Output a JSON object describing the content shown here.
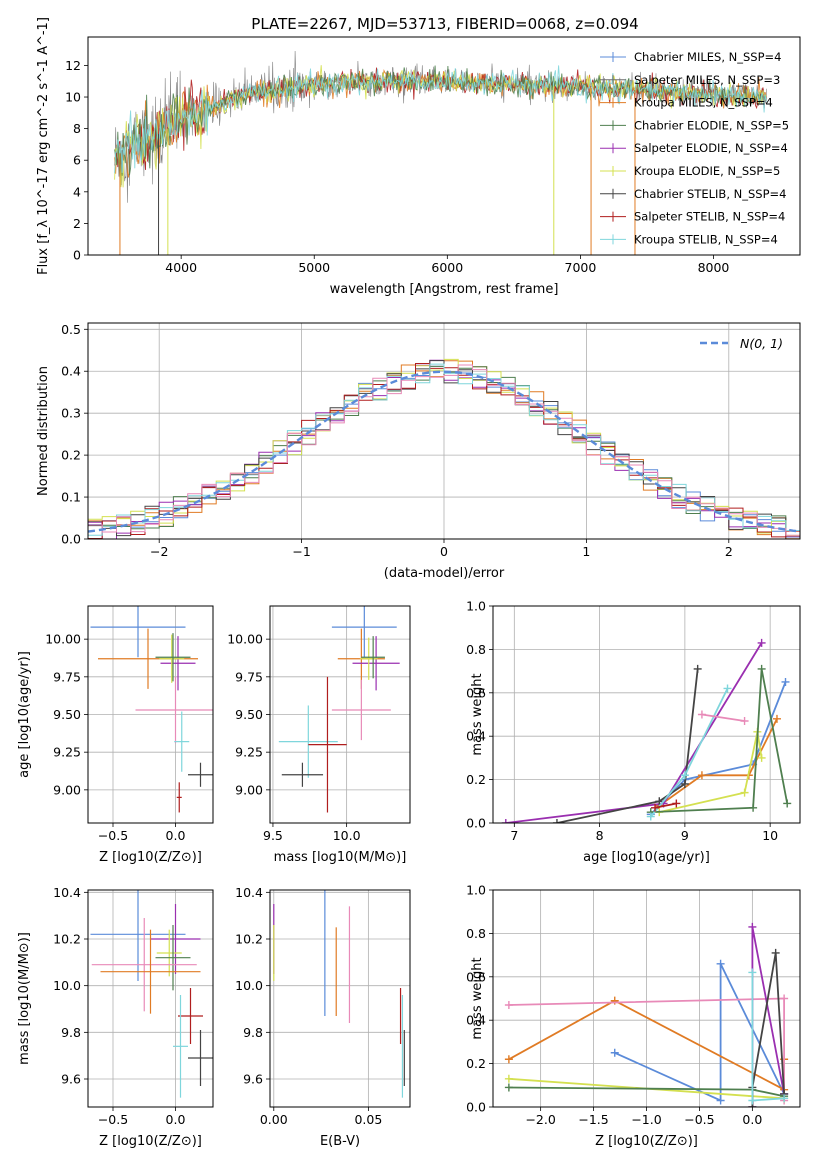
{
  "figure": {
    "title": "PLATE=2267, MJD=53713, FIBERID=0068, z=0.094"
  },
  "colors": {
    "Chabrier MILES": "#5b8bd9",
    "Salpeter MILES": "#6e6e6e",
    "Kroupa MILES": "#e07b24",
    "Chabrier ELODIE": "#4f7f4f",
    "Salpeter ELODIE": "#9a2fb0",
    "Kroupa ELODIE": "#d4e050",
    "Chabrier STELIB": "#444444",
    "Salpeter STELIB": "#b01e1e",
    "Kroupa STELIB": "#7fd6dc",
    "pink": "#e88ab8",
    "normal_curve": "#5b8bd9"
  },
  "chart_data": [
    {
      "id": "spectrum",
      "type": "line",
      "title": "PLATE=2267, MJD=53713, FIBERID=0068, z=0.094",
      "xlabel": "wavelength [Angstrom, rest frame]",
      "ylabel": "Flux [f_λ 10^-17 erg cm^-2 s^-1 A^-1]",
      "xlim": [
        3300,
        8650
      ],
      "ylim": [
        0,
        13.8
      ],
      "xticks": [
        "4000",
        "5000",
        "6000",
        "7000",
        "8000"
      ],
      "yticks": [
        "0",
        "2",
        "4",
        "6",
        "8",
        "10",
        "12"
      ],
      "grid": false,
      "legend_position": "top-right",
      "legend": [
        "Chabrier MILES, N_SSP=4",
        "Salpeter MILES, N_SSP=3",
        "Kroupa MILES, N_SSP=4",
        "Chabrier ELODIE, N_SSP=5",
        "Salpeter ELODIE, N_SSP=4",
        "Kroupa ELODIE, N_SSP=5",
        "Chabrier STELIB, N_SSP=4",
        "Salpeter STELIB, N_SSP=4",
        "Kroupa STELIB, N_SSP=4"
      ],
      "continuum_points": [
        [
          3500,
          6.2
        ],
        [
          3600,
          6.8
        ],
        [
          3700,
          7.2
        ],
        [
          3800,
          7.5
        ],
        [
          3900,
          8.0
        ],
        [
          4000,
          8.6
        ],
        [
          4200,
          9.3
        ],
        [
          4500,
          10.2
        ],
        [
          5000,
          10.8
        ],
        [
          5500,
          11.0
        ],
        [
          6000,
          11.0
        ],
        [
          6500,
          10.8
        ],
        [
          7000,
          10.6
        ],
        [
          7500,
          10.4
        ],
        [
          8000,
          10.2
        ],
        [
          8400,
          10.0
        ]
      ]
    },
    {
      "id": "residuals",
      "type": "histogram",
      "xlabel": "(data-model)/error",
      "ylabel": "Normed distribution",
      "xlim": [
        -2.5,
        2.5
      ],
      "ylim": [
        0,
        0.515
      ],
      "xticks": [
        "−2",
        "−1",
        "0",
        "1",
        "2"
      ],
      "yticks": [
        "0.0",
        "0.1",
        "0.2",
        "0.3",
        "0.4",
        "0.5"
      ],
      "grid": true,
      "legend_position": "top-right",
      "legend": [
        "N(0, 1)"
      ],
      "bin_width": 0.1
    },
    {
      "id": "age_vs_Z",
      "type": "scatter",
      "xlabel": "Z [log10(Z/Z⊙)]",
      "ylabel": "age  [log10(age/yr)]",
      "xlim": [
        -0.7,
        0.3
      ],
      "ylim": [
        8.78,
        10.22
      ],
      "xticks": [
        "−0.5",
        "0.0"
      ],
      "yticks": [
        "9.00",
        "9.25",
        "9.50",
        "9.75",
        "10.00"
      ],
      "grid": true,
      "series": [
        {
          "name": "Chabrier MILES",
          "x": -0.3,
          "xerr": 0.38,
          "y": 10.08,
          "yerr": 0.2
        },
        {
          "name": "Kroupa MILES",
          "x": -0.22,
          "xerr": 0.4,
          "y": 9.87,
          "yerr": 0.2
        },
        {
          "name": "Salpeter ELODIE",
          "x": 0.02,
          "xerr": 0.14,
          "y": 9.84,
          "yerr": 0.18
        },
        {
          "name": "Kroupa ELODIE",
          "x": -0.03,
          "xerr": 0.1,
          "y": 9.87,
          "yerr": 0.16
        },
        {
          "name": "Chabrier ELODIE",
          "x": -0.02,
          "xerr": 0.14,
          "y": 9.88,
          "yerr": 0.16
        },
        {
          "name": "pink",
          "x": 0.0,
          "xerr": 0.32,
          "y": 9.53,
          "yerr": 0.22
        },
        {
          "name": "Kroupa STELIB",
          "x": 0.05,
          "xerr": 0.06,
          "y": 9.32,
          "yerr": 0.2
        },
        {
          "name": "Chabrier STELIB",
          "x": 0.2,
          "xerr": 0.1,
          "y": 9.1,
          "yerr": 0.08
        },
        {
          "name": "Salpeter STELIB",
          "x": 0.03,
          "xerr": 0.02,
          "y": 8.95,
          "yerr": 0.1
        }
      ]
    },
    {
      "id": "age_vs_mass",
      "type": "scatter",
      "xlabel": "mass [log10(M/M⊙)]",
      "xlim": [
        9.48,
        10.43
      ],
      "ylim": [
        8.78,
        10.22
      ],
      "xticks": [
        "9.5",
        "10.0"
      ],
      "yticks": [
        "9.00",
        "9.25",
        "9.50",
        "9.75",
        "10.00"
      ],
      "grid": true,
      "series": [
        {
          "name": "Chabrier MILES",
          "x": 10.12,
          "xerr": 0.22,
          "y": 10.08,
          "yerr": 0.2
        },
        {
          "name": "Kroupa MILES",
          "x": 10.1,
          "xerr": 0.16,
          "y": 9.87,
          "yerr": 0.2
        },
        {
          "name": "Salpeter ELODIE",
          "x": 10.2,
          "xerr": 0.16,
          "y": 9.84,
          "yerr": 0.18
        },
        {
          "name": "Kroupa ELODIE",
          "x": 10.15,
          "xerr": 0.06,
          "y": 9.87,
          "yerr": 0.14
        },
        {
          "name": "Chabrier ELODIE",
          "x": 10.18,
          "xerr": 0.08,
          "y": 9.88,
          "yerr": 0.14
        },
        {
          "name": "pink",
          "x": 10.1,
          "xerr": 0.2,
          "y": 9.53,
          "yerr": 0.2
        },
        {
          "name": "Kroupa STELIB",
          "x": 9.74,
          "xerr": 0.2,
          "y": 9.32,
          "yerr": 0.24
        },
        {
          "name": "Chabrier STELIB",
          "x": 9.7,
          "xerr": 0.14,
          "y": 9.1,
          "yerr": 0.08
        },
        {
          "name": "Salpeter STELIB",
          "x": 9.87,
          "xerr": 0.13,
          "y": 9.3,
          "yerr": 0.45
        }
      ]
    },
    {
      "id": "weight_vs_age",
      "type": "line",
      "xlabel": "age  [log10(age/yr)]",
      "ylabel": "mass weight",
      "xlim": [
        6.75,
        10.35
      ],
      "ylim": [
        0,
        1
      ],
      "xticks": [
        "7",
        "8",
        "9",
        "10"
      ],
      "yticks": [
        "0.0",
        "0.2",
        "0.4",
        "0.6",
        "0.8",
        "1.0"
      ],
      "grid": true,
      "series": [
        {
          "name": "Chabrier MILES",
          "x": [
            8.6,
            9.0,
            9.8,
            10.18
          ],
          "y": [
            0.04,
            0.2,
            0.27,
            0.65
          ]
        },
        {
          "name": "Kroupa MILES",
          "x": [
            8.7,
            9.2,
            9.75,
            10.08
          ],
          "y": [
            0.08,
            0.22,
            0.22,
            0.48
          ]
        },
        {
          "name": "Salpeter ELODIE",
          "x": [
            6.9,
            8.75,
            9.9
          ],
          "y": [
            0.0,
            0.09,
            0.83
          ]
        },
        {
          "name": "Kroupa ELODIE",
          "x": [
            8.7,
            9.7,
            9.85,
            9.9
          ],
          "y": [
            0.05,
            0.14,
            0.42,
            0.3
          ]
        },
        {
          "name": "Chabrier ELODIE",
          "x": [
            8.6,
            9.8,
            9.9,
            10.2
          ],
          "y": [
            0.05,
            0.07,
            0.71,
            0.09
          ]
        },
        {
          "name": "Chabrier STELIB",
          "x": [
            7.5,
            8.7,
            9.0,
            9.15
          ],
          "y": [
            0.0,
            0.1,
            0.18,
            0.71
          ]
        },
        {
          "name": "Kroupa STELIB",
          "x": [
            8.6,
            9.0,
            9.5
          ],
          "y": [
            0.03,
            0.22,
            0.62
          ]
        },
        {
          "name": "Salpeter STELIB",
          "x": [
            8.65,
            8.9
          ],
          "y": [
            0.07,
            0.09
          ]
        },
        {
          "name": "pink",
          "x": [
            9.2,
            9.7
          ],
          "y": [
            0.5,
            0.47
          ]
        }
      ]
    },
    {
      "id": "mass_vs_Z",
      "type": "scatter",
      "xlabel": "Z [log10(Z/Z⊙)]",
      "ylabel": "mass [log10(M/M⊙)]",
      "xlim": [
        -0.7,
        0.3
      ],
      "ylim": [
        9.48,
        10.41
      ],
      "xticks": [
        "−0.5",
        "0.0"
      ],
      "yticks": [
        "9.6",
        "9.8",
        "10.0",
        "10.2",
        "10.4"
      ],
      "grid": true,
      "series": [
        {
          "name": "Chabrier MILES",
          "x": -0.3,
          "xerr": 0.38,
          "y": 10.22,
          "yerr": 0.2
        },
        {
          "name": "Salpeter ELODIE",
          "x": 0.0,
          "xerr": 0.2,
          "y": 10.2,
          "yerr": 0.15
        },
        {
          "name": "Kroupa ELODIE",
          "x": -0.05,
          "xerr": 0.1,
          "y": 10.14,
          "yerr": 0.1
        },
        {
          "name": "Chabrier ELODIE",
          "x": -0.02,
          "xerr": 0.14,
          "y": 10.12,
          "yerr": 0.14
        },
        {
          "name": "pink",
          "x": -0.25,
          "xerr": 0.42,
          "y": 10.09,
          "yerr": 0.2
        },
        {
          "name": "Kroupa MILES",
          "x": -0.2,
          "xerr": 0.4,
          "y": 10.06,
          "yerr": 0.18
        },
        {
          "name": "Salpeter STELIB",
          "x": 0.12,
          "xerr": 0.1,
          "y": 9.87,
          "yerr": 0.12
        },
        {
          "name": "Kroupa STELIB",
          "x": 0.04,
          "xerr": 0.06,
          "y": 9.74,
          "yerr": 0.22
        },
        {
          "name": "Chabrier STELIB",
          "x": 0.2,
          "xerr": 0.1,
          "y": 9.69,
          "yerr": 0.12
        }
      ]
    },
    {
      "id": "mass_vs_EBV",
      "type": "scatter",
      "xlabel": "E(B-V)",
      "xlim": [
        -0.002,
        0.072
      ],
      "ylim": [
        9.48,
        10.41
      ],
      "xticks": [
        "0.00",
        "0.05"
      ],
      "yticks": [
        "9.6",
        "9.8",
        "10.0",
        "10.2",
        "10.4"
      ],
      "grid": true,
      "series": [
        {
          "name": "Salpeter ELODIE",
          "x": 0.0,
          "y": 10.2,
          "yerr": 0.15
        },
        {
          "name": "Kroupa ELODIE",
          "x": 0.0,
          "y": 10.14,
          "yerr": 0.12
        },
        {
          "name": "Chabrier MILES",
          "x": 0.027,
          "y": 10.22,
          "yerr": 0.35
        },
        {
          "name": "Kroupa MILES",
          "x": 0.033,
          "y": 10.06,
          "yerr": 0.19
        },
        {
          "name": "pink",
          "x": 0.04,
          "y": 10.09,
          "yerr": 0.25
        },
        {
          "name": "Salpeter STELIB",
          "x": 0.067,
          "y": 9.87,
          "yerr": 0.12
        },
        {
          "name": "Kroupa STELIB",
          "x": 0.068,
          "y": 9.74,
          "yerr": 0.22
        },
        {
          "name": "Chabrier STELIB",
          "x": 0.069,
          "y": 9.69,
          "yerr": 0.12
        }
      ]
    },
    {
      "id": "weight_vs_Z",
      "type": "line",
      "xlabel": "Z [log10(Z/Z⊙)]",
      "ylabel": "mass weight",
      "xlim": [
        -2.45,
        0.45
      ],
      "ylim": [
        0,
        1
      ],
      "xticks": [
        "−2.0",
        "−1.5",
        "−1.0",
        "−0.5",
        "0.0"
      ],
      "yticks": [
        "0.0",
        "0.2",
        "0.4",
        "0.6",
        "0.8",
        "1.0"
      ],
      "grid": true,
      "series": [
        {
          "name": "Chabrier MILES",
          "x": [
            -1.3,
            -0.3,
            -0.3,
            0.3
          ],
          "y": [
            0.25,
            0.03,
            0.66,
            0.06
          ]
        },
        {
          "name": "Kroupa MILES",
          "x": [
            -2.3,
            -1.3,
            0.3,
            0.3
          ],
          "y": [
            0.22,
            0.49,
            0.08,
            0.22
          ]
        },
        {
          "name": "pink",
          "x": [
            -2.3,
            0.3,
            0.3
          ],
          "y": [
            0.47,
            0.5,
            0.03
          ]
        },
        {
          "name": "Kroupa ELODIE",
          "x": [
            -2.3,
            0.0,
            0.3
          ],
          "y": [
            0.13,
            0.05,
            0.04
          ]
        },
        {
          "name": "Chabrier ELODIE",
          "x": [
            -2.3,
            0.0,
            0.3
          ],
          "y": [
            0.09,
            0.08,
            0.05
          ]
        },
        {
          "name": "Salpeter ELODIE",
          "x": [
            0.0,
            0.0,
            0.3
          ],
          "y": [
            0.0,
            0.83,
            0.06
          ]
        },
        {
          "name": "Chabrier STELIB",
          "x": [
            0.0,
            0.0,
            0.22,
            0.3
          ],
          "y": [
            0.0,
            0.09,
            0.71,
            0.06
          ]
        },
        {
          "name": "Kroupa STELIB",
          "x": [
            0.0,
            0.0,
            0.3
          ],
          "y": [
            0.62,
            0.03,
            0.04
          ]
        }
      ]
    }
  ]
}
